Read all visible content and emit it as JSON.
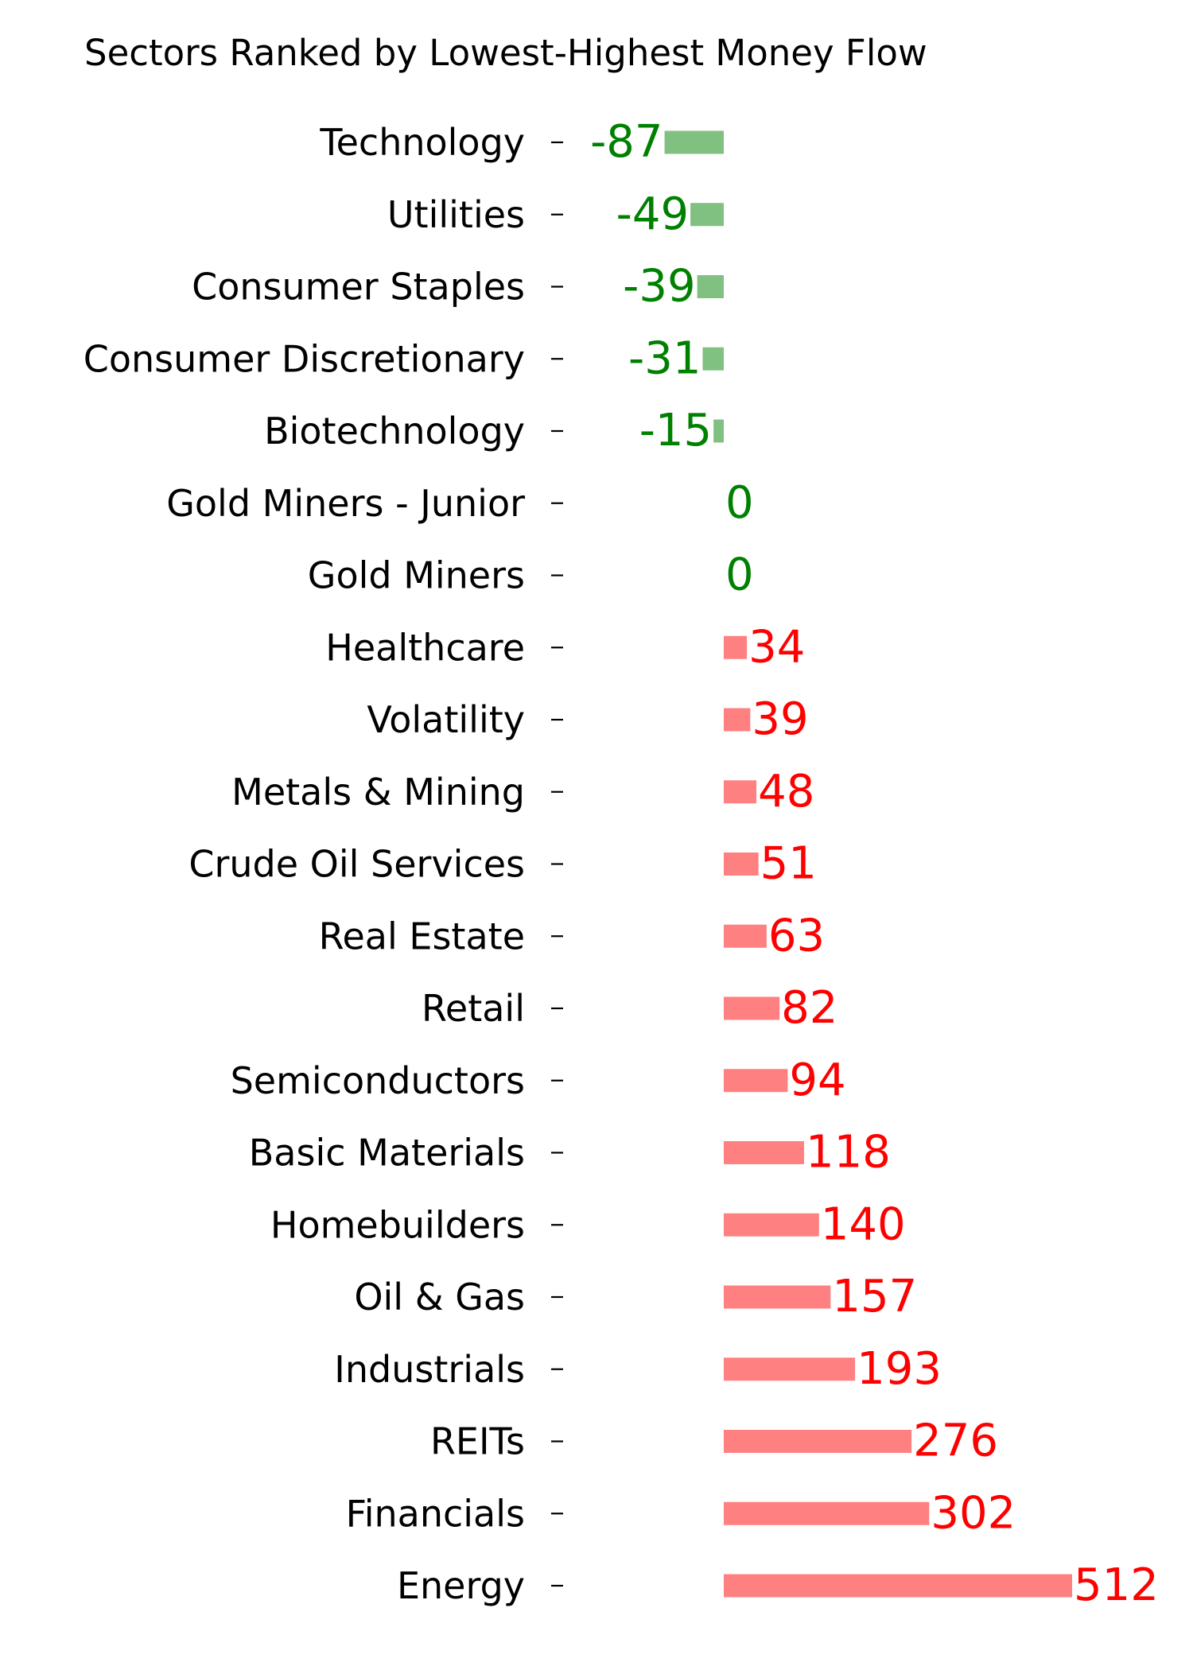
{
  "chart_data": {
    "type": "bar",
    "orientation": "horizontal",
    "title": "Sectors Ranked by Lowest-Highest Money Flow",
    "xlabel": "",
    "ylabel": "",
    "grid": false,
    "legend": "none",
    "xlim": [
      -150,
      550
    ],
    "colors": {
      "negative_bar": "#80c080",
      "positive_bar": "#ff8080",
      "negative_label": "#008000",
      "positive_label": "#ff0000"
    },
    "categories": [
      "Technology",
      "Utilities",
      "Consumer Staples",
      "Consumer Discretionary",
      "Biotechnology",
      "Gold Miners - Junior",
      "Gold Miners",
      "Healthcare",
      "Volatility",
      "Metals & Mining",
      "Crude Oil Services",
      "Real Estate",
      "Retail",
      "Semiconductors",
      "Basic Materials",
      "Homebuilders",
      "Oil & Gas",
      "Industrials",
      "REITs",
      "Financials",
      "Energy"
    ],
    "values": [
      -87,
      -49,
      -39,
      -31,
      -15,
      0,
      0,
      34,
      39,
      48,
      51,
      63,
      82,
      94,
      118,
      140,
      157,
      193,
      276,
      302,
      512
    ],
    "value_labels": [
      "-87",
      "-49",
      "-39",
      "-31",
      "-15",
      "0",
      "0",
      "34",
      "39",
      "48",
      "51",
      "63",
      "82",
      "94",
      "118",
      "140",
      "157",
      "193",
      "276",
      "302",
      "512"
    ]
  }
}
